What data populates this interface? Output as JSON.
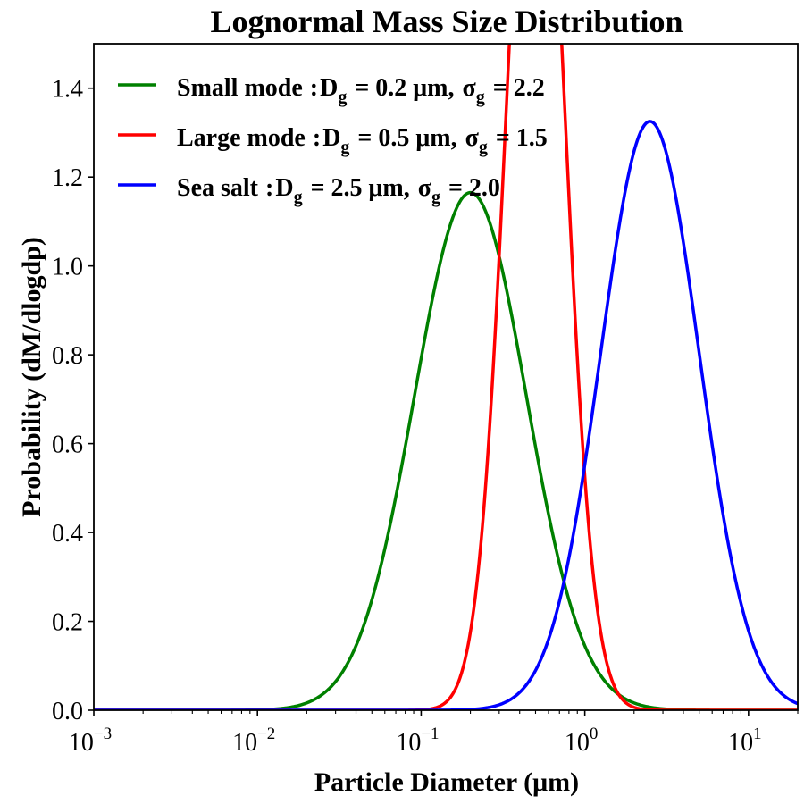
{
  "chart_data": {
    "type": "line",
    "title": "Lognormal Mass Size Distribution",
    "xlabel": "Particle Diameter (μm)",
    "ylabel": "Probability (dM/dlogdp)",
    "xscale": "log",
    "xlim": [
      0.001,
      20
    ],
    "ylim": [
      0.0,
      1.5
    ],
    "grid": false,
    "legend_position": "top-left",
    "x_ticks": [
      {
        "base": "10",
        "exp": "−3",
        "value": 0.001
      },
      {
        "base": "10",
        "exp": "−2",
        "value": 0.01
      },
      {
        "base": "10",
        "exp": "−1",
        "value": 0.1
      },
      {
        "base": "10",
        "exp": "0",
        "value": 1
      },
      {
        "base": "10",
        "exp": "1",
        "value": 10
      }
    ],
    "y_ticks": [
      "0.0",
      "0.2",
      "0.4",
      "0.6",
      "0.8",
      "1.0",
      "1.2",
      "1.4"
    ],
    "series": [
      {
        "name": "Small mode",
        "color": "#008000",
        "Dg": 0.2,
        "sigma_g": 2.2,
        "legend": {
          "label": "Small mode",
          "sep": ":",
          "D": "D",
          "Dsub": "g",
          "Dval": "= 0.2 μm,",
          "s": "σ",
          "ssub": "g",
          "sval": "= 2.2"
        }
      },
      {
        "name": "Large mode",
        "color": "#ff0000",
        "Dg": 0.5,
        "sigma_g": 1.5,
        "legend": {
          "label": "Large mode",
          "sep": ":",
          "D": "D",
          "Dsub": "g",
          "Dval": "= 0.5 μm,",
          "s": "σ",
          "ssub": "g",
          "sval": "= 1.5"
        }
      },
      {
        "name": "Sea salt",
        "color": "#0000ff",
        "Dg": 2.5,
        "sigma_g": 2.0,
        "legend": {
          "label": "Sea salt",
          "sep": ":",
          "D": "D",
          "Dsub": "g",
          "Dval": "= 2.5 μm,",
          "s": "σ",
          "ssub": "g",
          "sval": "= 2.0"
        }
      }
    ]
  }
}
